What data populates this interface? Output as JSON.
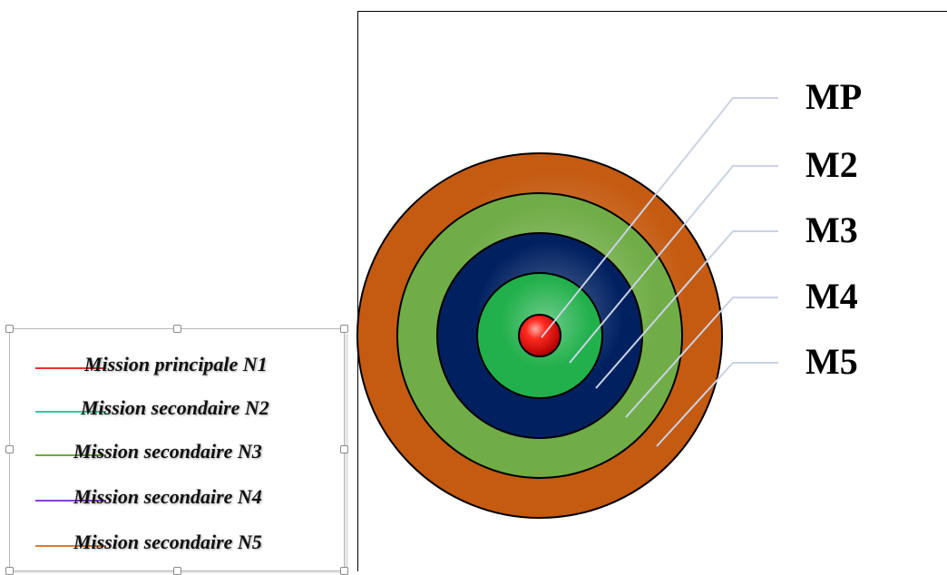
{
  "legend": {
    "items": [
      {
        "label": "Mission principale N1",
        "color": "#e8322e"
      },
      {
        "label": "Mission secondaire N2",
        "color": "#3fc49a"
      },
      {
        "label": "Mission secondaire N3",
        "color": "#6aab3c"
      },
      {
        "label": "Mission secondaire N4",
        "color": "#8a3fd6"
      },
      {
        "label": "Mission secondaire N5",
        "color": "#e07a2c"
      }
    ]
  },
  "target": {
    "rings": [
      {
        "label": "M5",
        "color": "#c55a11"
      },
      {
        "label": "M4",
        "color": "#70ad47"
      },
      {
        "label": "M3",
        "color": "#002060"
      },
      {
        "label": "M2",
        "color": "#22b04c"
      },
      {
        "label": "MP",
        "color": "#e8191d"
      }
    ]
  }
}
